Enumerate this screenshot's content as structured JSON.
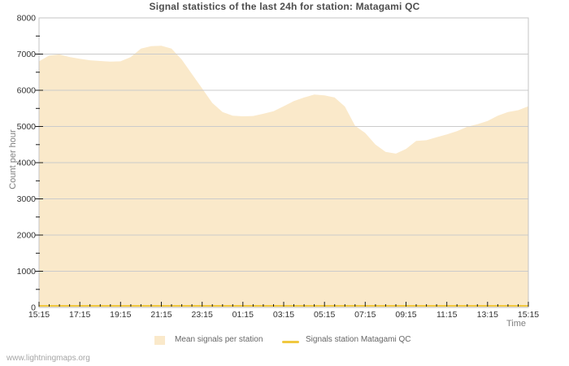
{
  "page": {
    "title": "Signal statistics of the last 24h for station: Matagami QC",
    "watermark": "www.lightningmaps.org"
  },
  "legend": {
    "items": [
      {
        "label": "Mean signals per station",
        "swatch": "area",
        "color": "#FAE9CA"
      },
      {
        "label": "Signals station Matagami QC",
        "swatch": "line",
        "color": "#F0C840"
      }
    ]
  },
  "chart_data": {
    "type": "area",
    "title": "Signal statistics of the last 24h for station: Matagami QC",
    "xlabel": "Time",
    "ylabel": "Count per hour",
    "ylim": [
      0,
      8000
    ],
    "y_tick_interval": 1000,
    "y_minor_tick_interval": 500,
    "grid": "horizontal-only",
    "legend_position": "bottom",
    "x_major_tick_labels": [
      "15:15",
      "17:15",
      "19:15",
      "21:15",
      "23:15",
      "01:15",
      "03:15",
      "05:15",
      "07:15",
      "09:15",
      "11:15",
      "13:15",
      "15:15"
    ],
    "x_minor_ticks_per_major": 4,
    "x": [
      "15:15",
      "15:45",
      "16:15",
      "16:45",
      "17:15",
      "17:45",
      "18:15",
      "18:45",
      "19:15",
      "19:45",
      "20:15",
      "20:45",
      "21:15",
      "21:45",
      "22:15",
      "22:45",
      "23:15",
      "23:45",
      "00:15",
      "00:45",
      "01:15",
      "01:45",
      "02:15",
      "02:45",
      "03:15",
      "03:45",
      "04:15",
      "04:45",
      "05:15",
      "05:45",
      "06:15",
      "06:45",
      "07:15",
      "07:45",
      "08:15",
      "08:45",
      "09:15",
      "09:45",
      "10:15",
      "10:45",
      "11:15",
      "11:45",
      "12:15",
      "12:45",
      "13:15",
      "13:45",
      "14:15",
      "14:45",
      "15:15"
    ],
    "series": [
      {
        "name": "Mean signals per station",
        "type": "area",
        "color": "#FAE9CA",
        "values": [
          6800,
          6960,
          6990,
          6920,
          6870,
          6830,
          6810,
          6790,
          6800,
          6920,
          7150,
          7220,
          7230,
          7150,
          6850,
          6450,
          6050,
          5650,
          5400,
          5300,
          5280,
          5290,
          5350,
          5420,
          5560,
          5700,
          5800,
          5880,
          5860,
          5800,
          5550,
          5020,
          4820,
          4500,
          4300,
          4250,
          4380,
          4600,
          4620,
          4700,
          4780,
          4870,
          4990,
          5060,
          5150,
          5300,
          5400,
          5450,
          5560
        ]
      },
      {
        "name": "Signals station Matagami QC",
        "type": "line",
        "color": "#F0C840",
        "values": [
          0,
          0,
          0,
          0,
          0,
          0,
          0,
          0,
          0,
          0,
          0,
          0,
          0,
          0,
          0,
          0,
          0,
          0,
          0,
          0,
          0,
          0,
          0,
          0,
          0,
          0,
          0,
          0,
          0,
          0,
          0,
          0,
          0,
          0,
          0,
          0,
          0,
          0,
          0,
          0,
          0,
          0,
          0,
          0,
          0,
          0,
          0,
          0,
          0
        ]
      }
    ]
  },
  "colors": {
    "background": "#FFFFFF",
    "plot_border": "#C4C4C4",
    "grid": "#CBCBCB",
    "tick": "#1A1A1A",
    "tick_label": "#333333",
    "title_text": "#4D4D4D",
    "axis_name": "#808080",
    "legend_text": "#666666",
    "watermark": "#A6A6A6"
  }
}
